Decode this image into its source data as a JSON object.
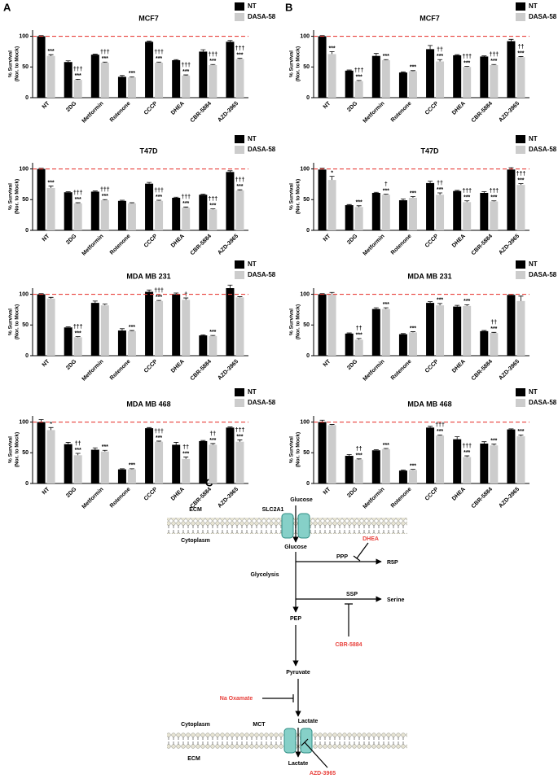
{
  "panel_labels": [
    "A",
    "B",
    "C"
  ],
  "chart_data": [
    {
      "type": "bar",
      "title": "MCF7",
      "ylabel": [
        "% Survival",
        "(Nor. to Mock)"
      ],
      "categories": [
        "NT",
        "2DG",
        "Metformin",
        "Rotenone",
        "CCCP",
        "DHEA",
        "CBR-5884",
        "AZD-3965"
      ],
      "series": [
        {
          "name": "NT",
          "color": "#000000",
          "values": [
            100,
            58,
            70,
            34,
            91,
            61,
            75,
            91
          ],
          "errors": [
            1,
            2,
            1,
            2,
            1,
            1,
            3,
            2
          ]
        },
        {
          "name": "DASA-58",
          "color": "#cccccc",
          "values": [
            68,
            29,
            57,
            33,
            57,
            36,
            53,
            63
          ],
          "errors": [
            2,
            1,
            1,
            1,
            1,
            1,
            1,
            1
          ],
          "annotations": [
            [
              "***"
            ],
            [
              "†††",
              "***"
            ],
            [
              "†††",
              "***"
            ],
            [
              "***"
            ],
            [
              "†††",
              "***"
            ],
            [
              "†††",
              "***"
            ],
            [
              "†††",
              "***"
            ],
            [
              "†††",
              "***"
            ]
          ]
        }
      ],
      "ylim": [
        0,
        110
      ],
      "yticks": [
        0,
        50,
        100
      ],
      "reference_line": 100,
      "reference_color": "#e8413c",
      "legend": "upper right"
    },
    {
      "type": "bar",
      "title": "MCF7",
      "ylabel": [
        "% Survival",
        "(Nor. to Mock)"
      ],
      "categories": [
        "NT",
        "2DG",
        "Metformin",
        "Rotenone",
        "CCCP",
        "DHEA",
        "CBR-5884",
        "AZD-3965"
      ],
      "series": [
        {
          "name": "NT",
          "color": "#000000",
          "values": [
            100,
            44,
            68,
            41,
            79,
            69,
            67,
            92
          ],
          "errors": [
            1,
            1,
            4,
            1,
            6,
            1,
            1,
            3
          ]
        },
        {
          "name": "DASA-58",
          "color": "#cccccc",
          "values": [
            71,
            27,
            61,
            43,
            59,
            50,
            53,
            66
          ],
          "errors": [
            4,
            1,
            1,
            1,
            3,
            1,
            1,
            1
          ],
          "annotations": [
            [
              "***"
            ],
            [
              "†††",
              "***"
            ],
            [
              "***"
            ],
            [
              "***"
            ],
            [
              "††",
              "***"
            ],
            [
              "†††",
              "***"
            ],
            [
              "†††",
              "***"
            ],
            [
              "††",
              "***"
            ]
          ]
        }
      ],
      "ylim": [
        0,
        110
      ],
      "yticks": [
        0,
        50,
        100
      ],
      "reference_line": 100,
      "reference_color": "#e8413c",
      "legend": "upper right"
    },
    {
      "type": "bar",
      "title": "T47D",
      "ylabel": [
        "% Survival",
        "(Nor. to Mock)"
      ],
      "categories": [
        "NT",
        "2DG",
        "Metformin",
        "Rotenone",
        "CCCP",
        "DHEA",
        "CBR-5884",
        "AZD-3965"
      ],
      "series": [
        {
          "name": "NT",
          "color": "#000000",
          "values": [
            100,
            62,
            63,
            48,
            76,
            53,
            58,
            95
          ],
          "errors": [
            1,
            1,
            1,
            1,
            2,
            1,
            1,
            2
          ]
        },
        {
          "name": "DASA-58",
          "color": "#cccccc",
          "values": [
            69,
            44,
            49,
            44,
            48,
            37,
            34,
            65
          ],
          "errors": [
            3,
            1,
            1,
            1,
            1,
            1,
            1,
            1
          ],
          "annotations": [
            [
              "***"
            ],
            [
              "†††",
              "***"
            ],
            [
              "†††",
              "***"
            ],
            null,
            [
              "†††",
              "***"
            ],
            [
              "†††",
              "***"
            ],
            [
              "†††",
              "***"
            ],
            [
              "†††",
              "***"
            ]
          ]
        }
      ],
      "ylim": [
        0,
        110
      ],
      "yticks": [
        0,
        50,
        100
      ],
      "reference_line": 100,
      "reference_color": "#e8413c",
      "legend": "upper right"
    },
    {
      "type": "bar",
      "title": "T47D",
      "ylabel": [
        "% Survival",
        "(Nor. to Mock)"
      ],
      "categories": [
        "NT",
        "2DG",
        "Metformin",
        "Rotenone",
        "CCCP",
        "DHEA",
        "CBR-5884",
        "AZD-3965"
      ],
      "series": [
        {
          "name": "NT",
          "color": "#000000",
          "values": [
            99,
            41,
            61,
            49,
            77,
            64,
            61,
            99
          ],
          "errors": [
            2,
            1,
            1,
            2,
            3,
            1,
            2,
            3
          ]
        },
        {
          "name": "DASA-58",
          "color": "#cccccc",
          "values": [
            82,
            38,
            58,
            53,
            58,
            46,
            47,
            74
          ],
          "errors": [
            6,
            2,
            1,
            2,
            3,
            2,
            1,
            2
          ],
          "annotations": [
            [
              "*"
            ],
            [
              "***"
            ],
            [
              "†",
              "***"
            ],
            [
              "***"
            ],
            [
              "††",
              "***"
            ],
            [
              "†††",
              "***"
            ],
            [
              "†††",
              "***"
            ],
            [
              "†††",
              "***"
            ]
          ]
        }
      ],
      "ylim": [
        0,
        110
      ],
      "yticks": [
        0,
        50,
        100
      ],
      "reference_line": 100,
      "reference_color": "#e8413c",
      "legend": "upper right"
    },
    {
      "type": "bar",
      "title": "MDA MB 231",
      "ylabel": [
        "% Survival",
        "(Nor. to Mock)"
      ],
      "categories": [
        "NT",
        "2DG",
        "Metformin",
        "Rotenone",
        "CCCP",
        "DHEA",
        "CBR-5884",
        "AZD-3965"
      ],
      "series": [
        {
          "name": "NT",
          "color": "#000000",
          "values": [
            100,
            46,
            86,
            41,
            104,
            100,
            33,
            110
          ],
          "errors": [
            1,
            1,
            3,
            3,
            3,
            2,
            1,
            5
          ]
        },
        {
          "name": "DASA-58",
          "color": "#cccccc",
          "values": [
            93,
            30,
            82,
            40,
            89,
            91,
            32,
            95
          ],
          "errors": [
            2,
            1,
            2,
            1,
            1,
            3,
            1,
            1
          ],
          "annotations": [
            null,
            [
              "†††",
              "***"
            ],
            null,
            [
              "***"
            ],
            [
              "†††",
              "***"
            ],
            [
              "†"
            ],
            [
              "***"
            ],
            null
          ]
        }
      ],
      "ylim": [
        0,
        110
      ],
      "yticks": [
        0,
        50,
        100
      ],
      "reference_line": 100,
      "reference_color": "#e8413c",
      "legend": "upper right"
    },
    {
      "type": "bar",
      "title": "MDA MB 231",
      "ylabel": [
        "% Survival",
        "(Nor. to Mock)"
      ],
      "categories": [
        "NT",
        "2DG",
        "Metformin",
        "Rotenone",
        "CCCP",
        "DHEA",
        "CBR-5884",
        "AZD-3965"
      ],
      "series": [
        {
          "name": "NT",
          "color": "#000000",
          "values": [
            100,
            36,
            76,
            35,
            86,
            80,
            40,
            99
          ],
          "errors": [
            1,
            1,
            2,
            1,
            2,
            2,
            1,
            1
          ]
        },
        {
          "name": "DASA-58",
          "color": "#cccccc",
          "values": [
            101,
            26,
            76,
            38,
            82,
            81,
            37,
            89
          ],
          "errors": [
            2,
            2,
            2,
            1,
            3,
            2,
            1,
            8
          ],
          "annotations": [
            null,
            [
              "††",
              "***"
            ],
            [
              "***"
            ],
            [
              "***"
            ],
            [
              "***"
            ],
            [
              "***"
            ],
            [
              "††",
              "***"
            ],
            null
          ]
        }
      ],
      "ylim": [
        0,
        110
      ],
      "yticks": [
        0,
        50,
        100
      ],
      "reference_line": 100,
      "reference_color": "#e8413c",
      "legend": "upper right"
    },
    {
      "type": "bar",
      "title": "MDA MB 468",
      "ylabel": [
        "% Survival",
        "(Nor. to Mock)"
      ],
      "categories": [
        "NT",
        "2DG",
        "Metformin",
        "Rotenone",
        "CCCP",
        "DHEA",
        "CBR-5884",
        "AZD-3965"
      ],
      "series": [
        {
          "name": "NT",
          "color": "#000000",
          "values": [
            100,
            64,
            55,
            23,
            90,
            63,
            69,
            91
          ],
          "errors": [
            4,
            3,
            3,
            1,
            1,
            4,
            1,
            1
          ]
        },
        {
          "name": "DASA-58",
          "color": "#cccccc",
          "values": [
            87,
            46,
            52,
            23,
            68,
            40,
            63,
            68
          ],
          "errors": [
            4,
            3,
            2,
            1,
            1,
            3,
            2,
            3
          ],
          "annotations": [
            [
              "*"
            ],
            [
              "††",
              "***"
            ],
            [
              "***"
            ],
            [
              "***"
            ],
            [
              "†††",
              "***"
            ],
            [
              "††",
              "***"
            ],
            [
              "††",
              "***"
            ],
            [
              "†††",
              "***"
            ]
          ]
        }
      ],
      "ylim": [
        0,
        110
      ],
      "yticks": [
        0,
        50,
        100
      ],
      "reference_line": 100,
      "reference_color": "#e8413c",
      "legend": "upper right"
    },
    {
      "type": "bar",
      "title": "MDA MB 468",
      "ylabel": [
        "% Survival",
        "(Nor. to Mock)"
      ],
      "categories": [
        "NT",
        "2DG",
        "Metformin",
        "Rotenone",
        "CCCP",
        "DHEA",
        "CBR-5884",
        "AZD-3965"
      ],
      "series": [
        {
          "name": "NT",
          "color": "#000000",
          "values": [
            100,
            45,
            54,
            21,
            91,
            72,
            65,
            88
          ],
          "errors": [
            3,
            2,
            1,
            1,
            2,
            4,
            3,
            1
          ]
        },
        {
          "name": "DASA-58",
          "color": "#cccccc",
          "values": [
            95,
            39,
            56,
            22,
            78,
            43,
            62,
            77
          ],
          "errors": [
            1,
            1,
            1,
            1,
            1,
            2,
            2,
            2
          ],
          "annotations": [
            null,
            [
              "††",
              "***"
            ],
            [
              "***"
            ],
            [
              "***"
            ],
            [
              "†††",
              "***"
            ],
            [
              "†††",
              "***"
            ],
            [
              "***"
            ],
            [
              "***"
            ]
          ]
        }
      ],
      "ylim": [
        0,
        110
      ],
      "yticks": [
        0,
        50,
        100
      ],
      "reference_line": 100,
      "reference_color": "#e8413c",
      "legend": "upper right"
    }
  ],
  "diagram": {
    "nodes": [
      {
        "label": "ECM"
      },
      {
        "label": "SLC2A1"
      },
      {
        "label": "Glucose"
      },
      {
        "label": "Cytoplasm"
      },
      {
        "label": "Glucose"
      },
      {
        "label": "PPP"
      },
      {
        "label": "R5P"
      },
      {
        "label": "Glycolysis"
      },
      {
        "label": "SSP"
      },
      {
        "label": "Serine"
      },
      {
        "label": "PEP"
      },
      {
        "label": "Pyruvate"
      },
      {
        "label": "Cytoplasm"
      },
      {
        "label": "MCT"
      },
      {
        "label": "Lactate"
      },
      {
        "label": "ECM"
      },
      {
        "label": "Lactate"
      }
    ],
    "inhibitors": [
      {
        "label": "DHEA",
        "color": "#e8413c"
      },
      {
        "label": "CBR-5884",
        "color": "#e8413c"
      },
      {
        "label": "Na Oxamate",
        "color": "#e8413c"
      },
      {
        "label": "AZD-3965",
        "color": "#e8413c"
      }
    ]
  }
}
